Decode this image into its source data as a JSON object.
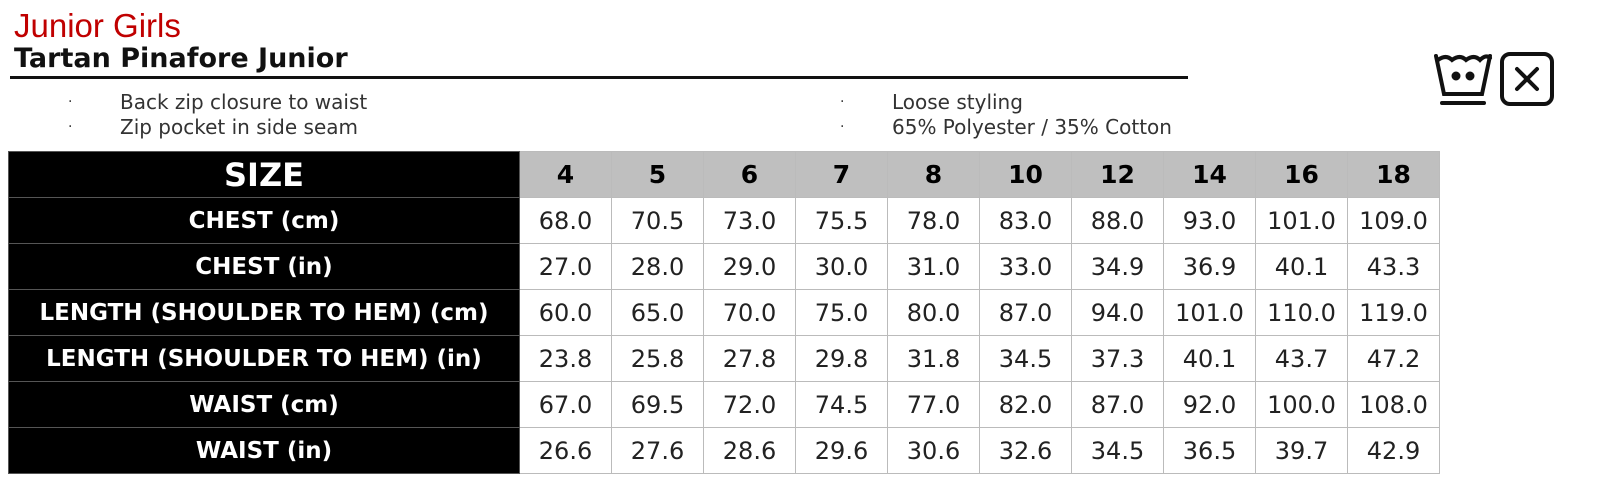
{
  "category": "Junior Girls",
  "product": "Tartan Pinafore Junior",
  "features": [
    "Back zip closure to waist",
    "Zip pocket in side seam",
    "Loose styling",
    "65% Polyester / 35% Cotton"
  ],
  "bullet": "·",
  "care_icons": [
    "wash-30-icon",
    "do-not-tumble-dry-icon"
  ],
  "table": {
    "header": "SIZE",
    "sizes": [
      "4",
      "5",
      "6",
      "7",
      "8",
      "10",
      "12",
      "14",
      "16",
      "18"
    ],
    "rows": [
      {
        "label": "CHEST (cm)",
        "values": [
          "68.0",
          "70.5",
          "73.0",
          "75.5",
          "78.0",
          "83.0",
          "88.0",
          "93.0",
          "101.0",
          "109.0"
        ]
      },
      {
        "label": "CHEST (in)",
        "values": [
          "27.0",
          "28.0",
          "29.0",
          "30.0",
          "31.0",
          "33.0",
          "34.9",
          "36.9",
          "40.1",
          "43.3"
        ]
      },
      {
        "label": "LENGTH (SHOULDER TO HEM) (cm)",
        "values": [
          "60.0",
          "65.0",
          "70.0",
          "75.0",
          "80.0",
          "87.0",
          "94.0",
          "101.0",
          "110.0",
          "119.0"
        ]
      },
      {
        "label": "LENGTH (SHOULDER TO HEM) (in)",
        "values": [
          "23.8",
          "25.8",
          "27.8",
          "29.8",
          "31.8",
          "34.5",
          "37.3",
          "40.1",
          "43.7",
          "47.2"
        ]
      },
      {
        "label": "WAIST (cm)",
        "values": [
          "67.0",
          "69.5",
          "72.0",
          "74.5",
          "77.0",
          "82.0",
          "87.0",
          "92.0",
          "100.0",
          "108.0"
        ]
      },
      {
        "label": "WAIST (in)",
        "values": [
          "26.6",
          "27.6",
          "28.6",
          "29.6",
          "30.6",
          "32.6",
          "34.5",
          "36.5",
          "39.7",
          "42.9"
        ]
      }
    ]
  }
}
